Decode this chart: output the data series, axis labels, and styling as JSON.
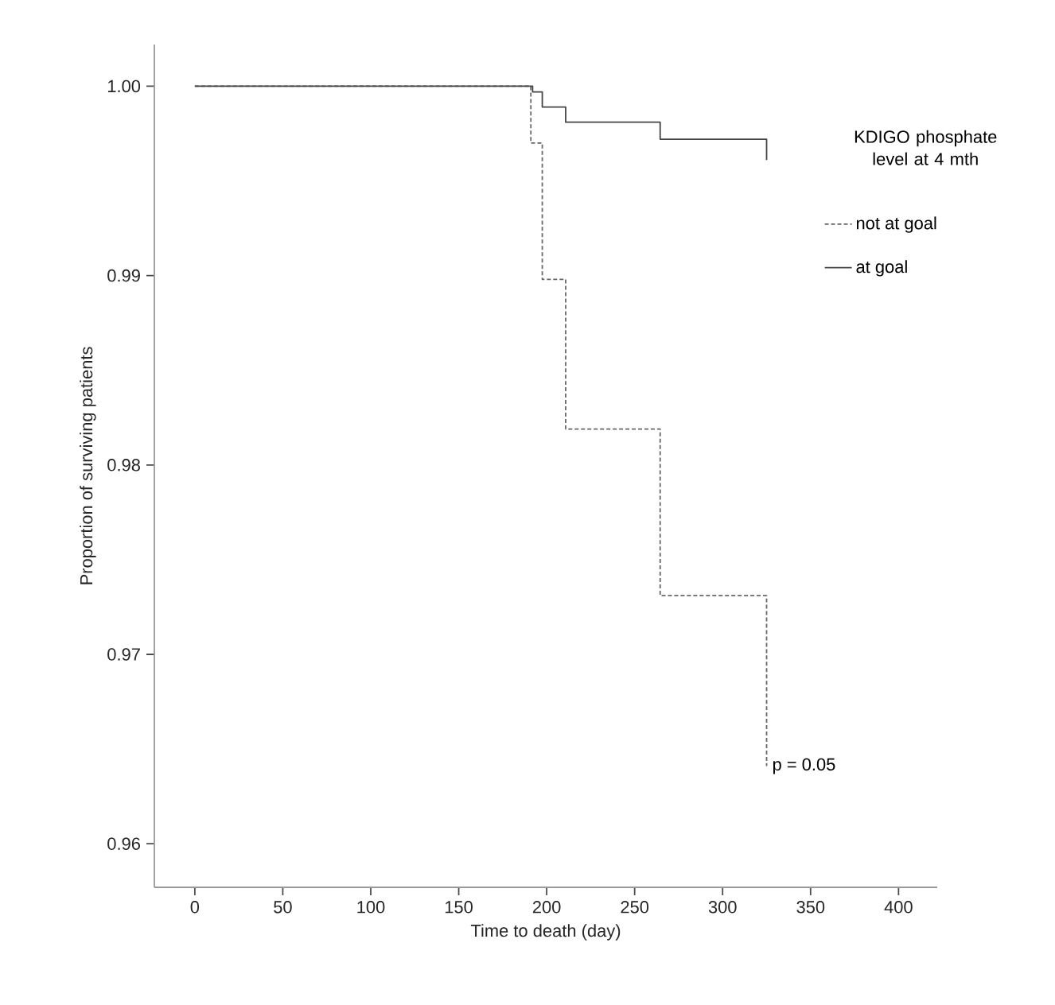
{
  "chart_data": {
    "type": "step",
    "xlabel": "Time to death (day)",
    "ylabel": "Proportion of surviving patients",
    "legend_title": "KDIGO phosphate level at 4 mth",
    "legend": "right",
    "xlim": [
      -23,
      422
    ],
    "ylim": [
      0.9577,
      1.0022
    ],
    "xticks": [
      0,
      50,
      100,
      150,
      200,
      250,
      300,
      350,
      400
    ],
    "yticks": [
      {
        "value": 0.96,
        "label": "0.96"
      },
      {
        "value": 0.97,
        "label": "0.97"
      },
      {
        "value": 0.98,
        "label": "0.98"
      },
      {
        "value": 0.99,
        "label": "0.99"
      },
      {
        "value": 1.0,
        "label": "1.00"
      }
    ],
    "series": [
      {
        "name": "not at goal",
        "color": "#666666",
        "line_style": "dashed",
        "x": [
          0,
          191,
          197.5,
          210.8,
          264.5,
          325,
          325
        ],
        "values": [
          1.0,
          0.997,
          0.9898,
          0.9819,
          0.9731,
          0.9641,
          0.9641
        ]
      },
      {
        "name": "at goal",
        "color": "#444444",
        "line_style": "solid",
        "x": [
          0,
          192,
          197.5,
          210.8,
          264.5,
          325,
          325
        ],
        "values": [
          1.0,
          0.9997,
          0.9989,
          0.9981,
          0.9972,
          0.9961,
          0.9961
        ]
      }
    ],
    "annotations": [
      {
        "text": "p = 0.05",
        "x": 325,
        "y": 0.9641
      }
    ]
  }
}
